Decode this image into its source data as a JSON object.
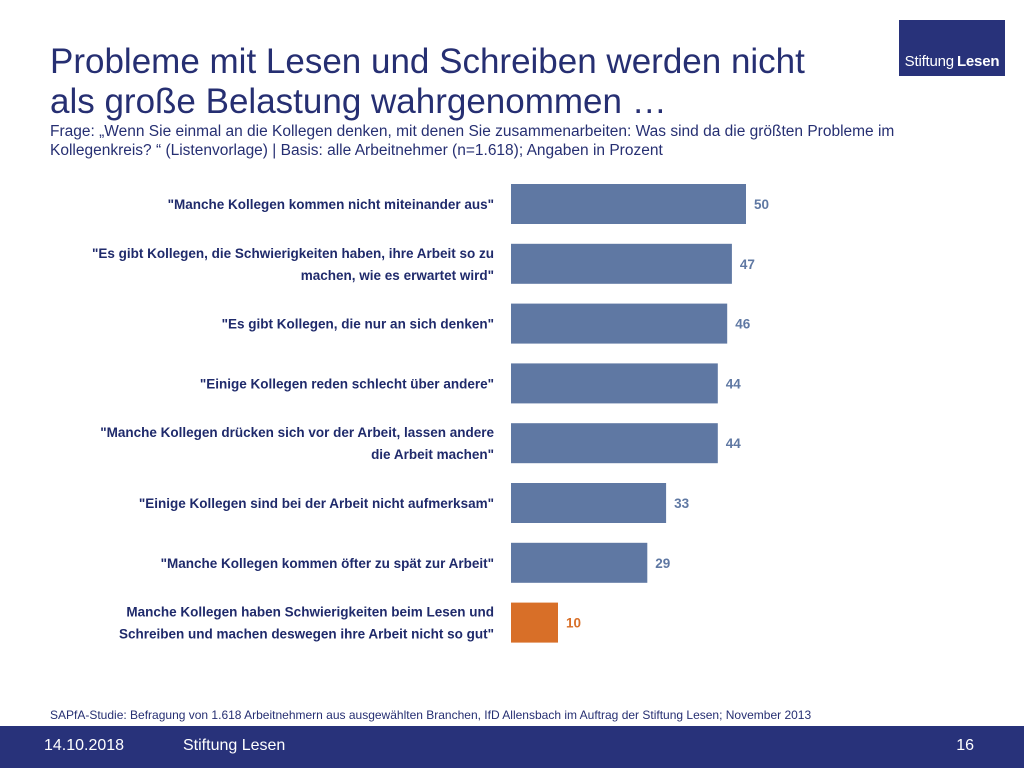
{
  "header": {
    "title_line1": "Probleme mit Lesen und Schreiben werden nicht",
    "title_line2": "als große Belastung wahrgenommen …",
    "question_line1": "Frage: „Wenn Sie einmal an die Kollegen denken, mit denen Sie zusammenarbeiten: Was sind da die größten Probleme im",
    "question_line2": "Kollegenkreis? “ (Listenvorlage) | Basis: alle Arbeitnehmer (n=1.618); Angaben in Prozent"
  },
  "logo": {
    "part1": "Stiftung",
    "part2": "Lesen"
  },
  "chart_data": {
    "type": "bar",
    "orientation": "horizontal",
    "title": "",
    "xlabel": "",
    "ylabel": "",
    "xlim": [
      0,
      100
    ],
    "unit": "Prozent",
    "categories": [
      [
        "\"Manche Kollegen kommen nicht miteinander aus\""
      ],
      [
        "\"Es gibt Kollegen, die Schwierigkeiten haben, ihre Arbeit so zu",
        "machen, wie es erwartet wird\""
      ],
      [
        "\"Es gibt Kollegen, die nur an sich denken\""
      ],
      [
        "\"Einige Kollegen reden schlecht über andere\""
      ],
      [
        "\"Manche Kollegen drücken sich vor der Arbeit, lassen andere",
        "die Arbeit machen\""
      ],
      [
        "\"Einige Kollegen sind bei der Arbeit nicht aufmerksam\""
      ],
      [
        "\"Manche Kollegen kommen öfter zu spät zur Arbeit\""
      ],
      [
        "Manche Kollegen haben Schwierigkeiten beim Lesen und",
        "Schreiben und machen deswegen ihre Arbeit nicht so gut\""
      ]
    ],
    "values": [
      50,
      47,
      46,
      44,
      44,
      33,
      29,
      10
    ],
    "colors": [
      "#5f78a3",
      "#5f78a3",
      "#5f78a3",
      "#5f78a3",
      "#5f78a3",
      "#5f78a3",
      "#5f78a3",
      "#d86f28"
    ],
    "value_label_colors": [
      "#5f78a3",
      "#5f78a3",
      "#5f78a3",
      "#5f78a3",
      "#5f78a3",
      "#5f78a3",
      "#5f78a3",
      "#d86f28"
    ]
  },
  "source": "SAPfA-Studie: Befragung von 1.618 Arbeitnehmern aus ausgewählten Branchen, IfD Allensbach im Auftrag der Stiftung Lesen; November 2013",
  "footer": {
    "date": "14.10.2018",
    "org": "Stiftung Lesen",
    "page": "16"
  }
}
